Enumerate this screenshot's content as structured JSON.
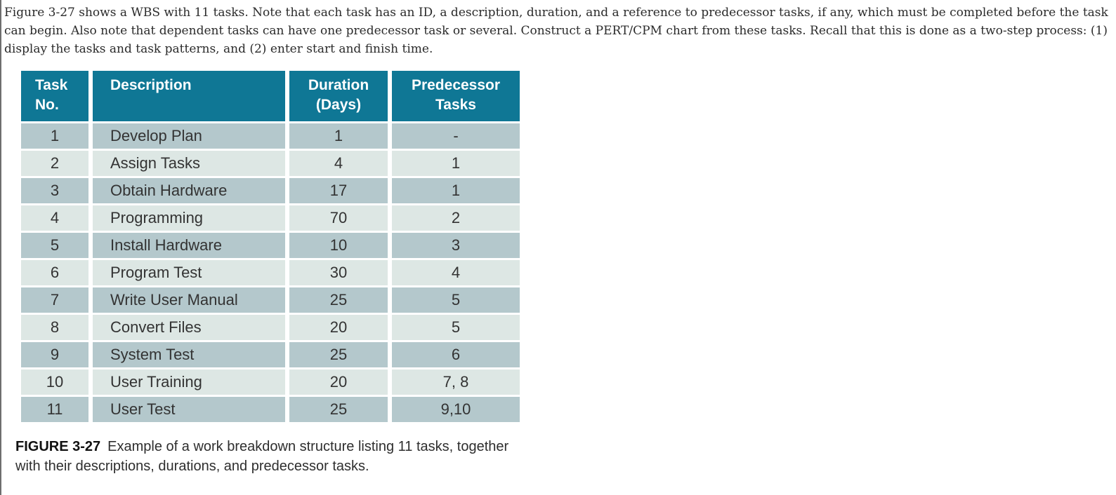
{
  "intro": {
    "text": "Figure 3-27 shows a WBS with 11 tasks. Note that each task has an ID, a description, duration, and a reference to predecessor tasks, if any, which must be completed before the task can begin. Also note that dependent tasks can have one predecessor task or several. Construct a PERT/CPM chart from these tasks. Recall that this is done as a two-step process: (1) display the tasks and task patterns, and (2) enter start and finish time."
  },
  "table": {
    "headers": [
      {
        "line1": "Task",
        "line2": "No."
      },
      {
        "line1": "Description",
        "line2": ""
      },
      {
        "line1": "Duration",
        "line2": "(Days)"
      },
      {
        "line1": "Predecessor",
        "line2": "Tasks"
      }
    ],
    "rows": [
      {
        "task_no": "1",
        "description": "Develop Plan",
        "duration": "1",
        "predecessors": "-"
      },
      {
        "task_no": "2",
        "description": "Assign Tasks",
        "duration": "4",
        "predecessors": "1"
      },
      {
        "task_no": "3",
        "description": "Obtain Hardware",
        "duration": "17",
        "predecessors": "1"
      },
      {
        "task_no": "4",
        "description": "Programming",
        "duration": "70",
        "predecessors": "2"
      },
      {
        "task_no": "5",
        "description": "Install Hardware",
        "duration": "10",
        "predecessors": "3"
      },
      {
        "task_no": "6",
        "description": "Program Test",
        "duration": "30",
        "predecessors": "4"
      },
      {
        "task_no": "7",
        "description": "Write User Manual",
        "duration": "25",
        "predecessors": "5"
      },
      {
        "task_no": "8",
        "description": "Convert Files",
        "duration": "20",
        "predecessors": "5"
      },
      {
        "task_no": "9",
        "description": "System Test",
        "duration": "25",
        "predecessors": "6"
      },
      {
        "task_no": "10",
        "description": "User Training",
        "duration": "20",
        "predecessors": "7, 8"
      },
      {
        "task_no": "11",
        "description": "User Test",
        "duration": "25",
        "predecessors": "9,10"
      }
    ]
  },
  "caption": {
    "label": "FIGURE 3-27",
    "text": "Example of a work breakdown structure listing 11 tasks, together with their descriptions, durations, and predecessor tasks."
  },
  "colors": {
    "header_bg": "#0f7795",
    "header_text": "#ffffff",
    "row_dark": "#b4c8cc",
    "row_light": "#dde7e4",
    "body_text": "#2b2b2b",
    "cell_text": "#333333"
  }
}
